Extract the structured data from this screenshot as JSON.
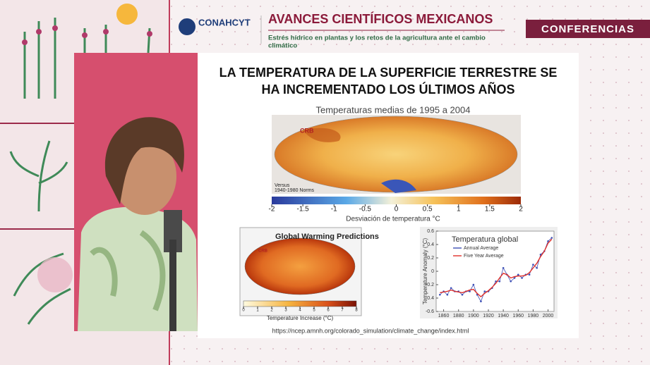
{
  "header": {
    "logo_text": "CONAHCYT",
    "title": "AVANCES CIENTÍFICOS MEXICANOS",
    "subtitle_lines": [
      "Estrés hídrico en plantas y los retos de la agricultura ante el cambio",
      "climático"
    ],
    "badge": "CONFERENCIAS"
  },
  "slide": {
    "title_lines": [
      "LA TEMPERATURA DE LA SUPERFICIE TERRESTRE SE",
      "HA INCREMENTADO LOS ÚLTIMOS AÑOS"
    ],
    "map1": {
      "title": "Temperaturas medias de 1995 a 2004",
      "label": "CRB",
      "note_lines": [
        "Versus",
        "1940-1980 Norms"
      ],
      "scale_lim": [
        -2,
        2
      ],
      "scale_ticks": [
        -2,
        -1.5,
        -1,
        -0.5,
        0,
        0.5,
        1,
        1.5,
        2
      ],
      "scale_label": "Desviación de temperatura °C"
    },
    "map2": {
      "title": "Global Warming Predictions",
      "label": "CRB",
      "scale_lim": [
        0,
        8
      ],
      "scale_ticks": [
        0,
        1,
        2,
        3,
        4,
        5,
        6,
        7,
        8
      ],
      "scale_label": "Temperature Increase (°C)"
    },
    "chart": {
      "type": "line",
      "title": "Temperatura global",
      "y_label": "Temperature Anomaly (°C)",
      "x": [
        1855,
        1860,
        1865,
        1870,
        1875,
        1880,
        1885,
        1890,
        1895,
        1900,
        1905,
        1910,
        1915,
        1920,
        1925,
        1930,
        1935,
        1940,
        1945,
        1950,
        1955,
        1960,
        1965,
        1970,
        1975,
        1980,
        1985,
        1990,
        1995,
        2000,
        2005
      ],
      "series": [
        {
          "name": "Annual Average",
          "color": "#3d4fb5",
          "values": [
            -0.35,
            -0.3,
            -0.35,
            -0.25,
            -0.3,
            -0.3,
            -0.35,
            -0.3,
            -0.3,
            -0.2,
            -0.35,
            -0.45,
            -0.3,
            -0.3,
            -0.25,
            -0.15,
            -0.15,
            0.05,
            -0.05,
            -0.15,
            -0.1,
            -0.05,
            -0.1,
            -0.05,
            -0.05,
            0.1,
            0.05,
            0.25,
            0.3,
            0.45,
            0.5
          ]
        },
        {
          "name": "Five Year Average",
          "color": "#e0302a",
          "values": [
            -0.32,
            -0.31,
            -0.3,
            -0.28,
            -0.3,
            -0.31,
            -0.32,
            -0.3,
            -0.28,
            -0.27,
            -0.33,
            -0.38,
            -0.33,
            -0.29,
            -0.24,
            -0.18,
            -0.1,
            -0.03,
            -0.05,
            -0.1,
            -0.08,
            -0.07,
            -0.07,
            -0.06,
            -0.02,
            0.05,
            0.12,
            0.22,
            0.3,
            0.42,
            0.48
          ]
        }
      ],
      "xlim": [
        1850,
        2008
      ],
      "ylim": [
        -0.6,
        0.6
      ],
      "xticks": [
        1860,
        1880,
        1900,
        1920,
        1940,
        1960,
        1980,
        2000
      ],
      "yticks": [
        -0.6,
        -0.4,
        -0.2,
        0,
        0.2,
        0.4,
        0.6
      ]
    },
    "source": "https://ncep.amnh.org/colorado_simulation/climate_change/index.html"
  }
}
